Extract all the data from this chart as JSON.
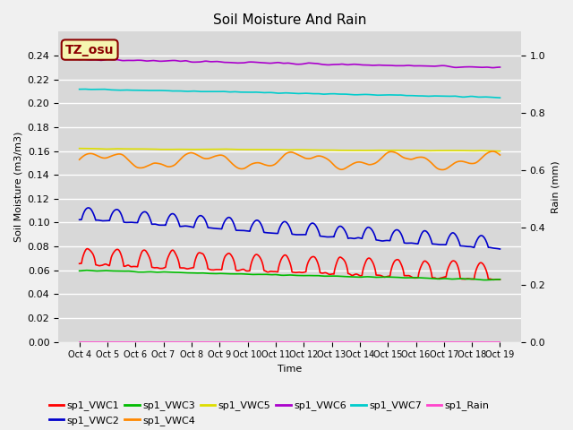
{
  "title": "Soil Moisture And Rain",
  "xlabel": "Time",
  "ylabel_left": "Soil Moisture (m3/m3)",
  "ylabel_right": "Rain (mm)",
  "ylim_left": [
    0.0,
    0.26
  ],
  "ylim_right": [
    0.0,
    1.083
  ],
  "x_ticks_labels": [
    "Oct 4",
    "Oct 5",
    "Oct 6",
    "Oct 7",
    "Oct 8",
    "Oct 9",
    "Oct 10",
    "Oct 11",
    "Oct 12",
    "Oct 13",
    "Oct 14",
    "Oct 15",
    "Oct 16",
    "Oct 17",
    "Oct 18",
    "Oct 19"
  ],
  "background_color": "#d8d8d8",
  "annotation_text": "TZ_osu",
  "annotation_bg": "#f5f5b0",
  "annotation_border": "#8b0000",
  "series_colors": {
    "sp1_VWC1": "#ff0000",
    "sp1_VWC2": "#0000cc",
    "sp1_VWC3": "#00bb00",
    "sp1_VWC4": "#ff8800",
    "sp1_VWC5": "#dddd00",
    "sp1_VWC6": "#aa00cc",
    "sp1_VWC7": "#00cccc",
    "sp1_Rain": "#ff44cc"
  }
}
